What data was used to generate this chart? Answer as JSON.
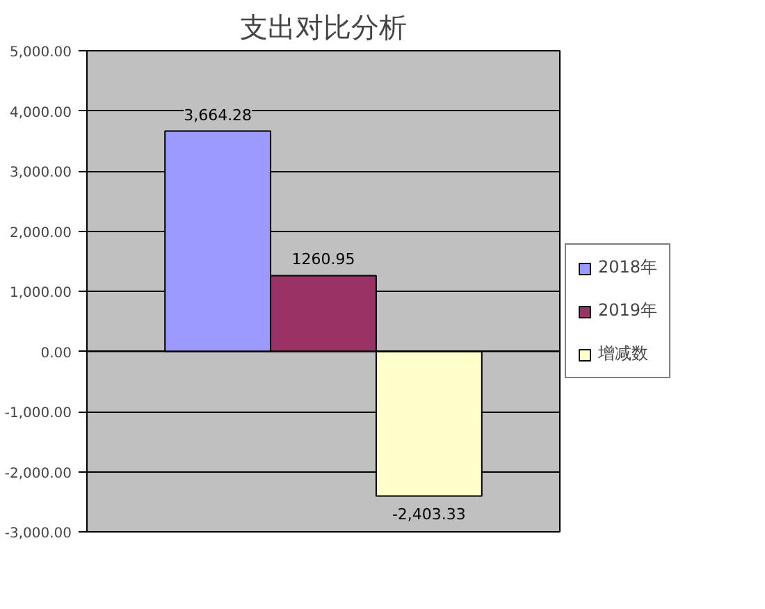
{
  "chart_data": {
    "type": "bar",
    "title": "支出对比分析",
    "categories": [
      null
    ],
    "series": [
      {
        "name": "2018年",
        "color": "#9999ff",
        "values": [
          3664.28
        ],
        "value_labels": [
          "3,664.28"
        ]
      },
      {
        "name": "2019年",
        "color": "#993366",
        "values": [
          1260.95
        ],
        "value_labels": [
          "1260.95"
        ]
      },
      {
        "name": "增减数",
        "color": "#ffffcc",
        "values": [
          -2403.33
        ],
        "value_labels": [
          "-2,403.33"
        ]
      }
    ],
    "ylim": [
      -3000,
      5000
    ],
    "yticks": [
      {
        "value": -3000,
        "label": "-3,000.00"
      },
      {
        "value": -2000,
        "label": "-2,000.00"
      },
      {
        "value": -1000,
        "label": "-1,000.00"
      },
      {
        "value": 0,
        "label": "0.00"
      },
      {
        "value": 1000,
        "label": "1,000.00"
      },
      {
        "value": 2000,
        "label": "2,000.00"
      },
      {
        "value": 3000,
        "label": "3,000.00"
      },
      {
        "value": 4000,
        "label": "4,000.00"
      },
      {
        "value": 5000,
        "label": "5,000.00"
      }
    ],
    "grid": "y",
    "legend": "right",
    "tick_labels": "y"
  }
}
